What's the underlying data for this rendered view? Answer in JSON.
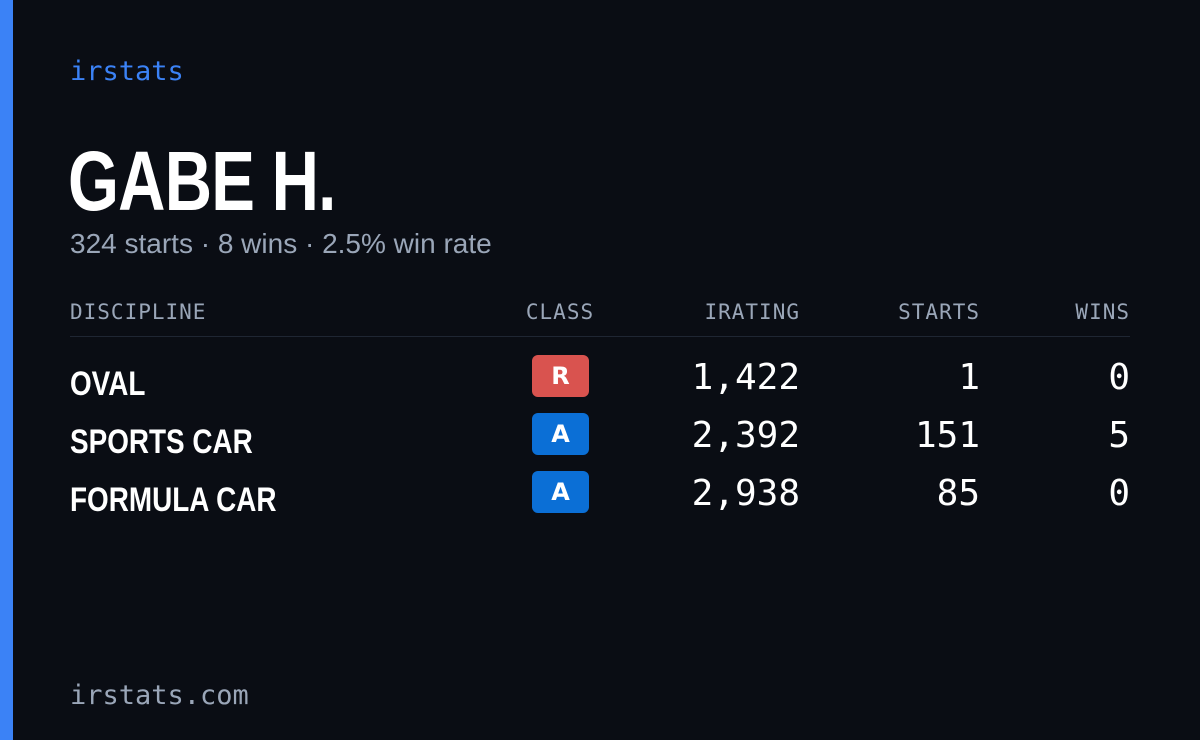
{
  "brand": "irstats",
  "player": {
    "name": "GABE H.",
    "summary": "324 starts · 8 wins · 2.5% win rate"
  },
  "table": {
    "headers": {
      "discipline": "DISCIPLINE",
      "class": "CLASS",
      "irating": "IRATING",
      "starts": "STARTS",
      "wins": "WINS"
    },
    "rows": [
      {
        "discipline": "OVAL",
        "class": "R",
        "class_color": "#d9534f",
        "irating": "1,422",
        "starts": "1",
        "wins": "0"
      },
      {
        "discipline": "SPORTS CAR",
        "class": "A",
        "class_color": "#0b6fd6",
        "irating": "2,392",
        "starts": "151",
        "wins": "5"
      },
      {
        "discipline": "FORMULA CAR",
        "class": "A",
        "class_color": "#0b6fd6",
        "irating": "2,938",
        "starts": "85",
        "wins": "0"
      }
    ]
  },
  "footer": "irstats.com",
  "colors": {
    "background": "#0a0d14",
    "accent": "#3b82f6",
    "muted_text": "#9aa6b8"
  }
}
